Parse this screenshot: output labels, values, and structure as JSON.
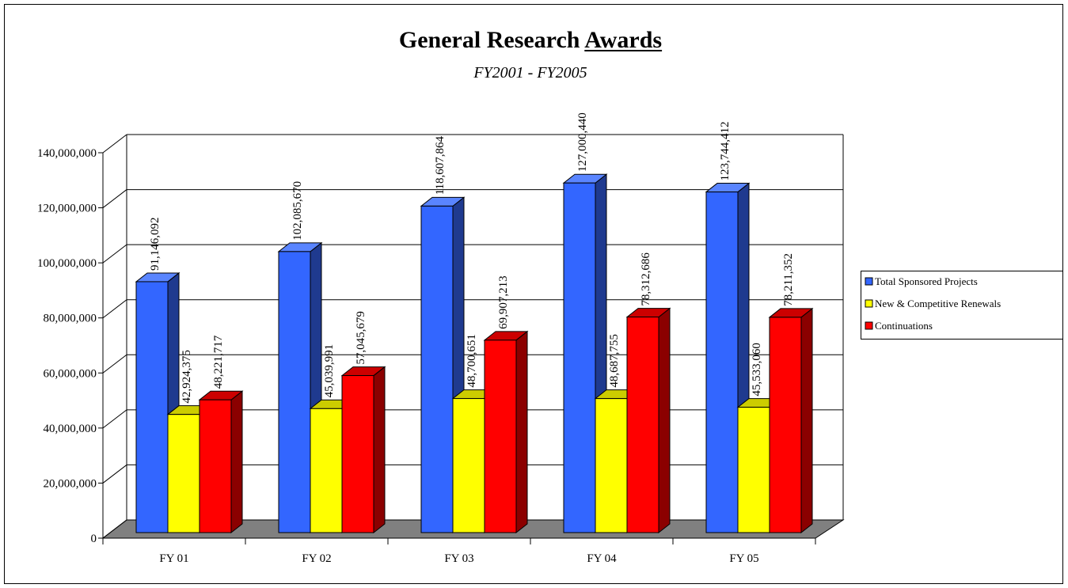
{
  "chart_data": {
    "type": "bar3d",
    "title": "General Research Awards",
    "subtitle": "FY2001 - FY2005",
    "categories": [
      "FY 01",
      "FY 02",
      "FY 03",
      "FY 04",
      "FY 05"
    ],
    "series": [
      {
        "name": "Total Sponsored Projects",
        "color": "#3366ff",
        "values": [
          91146092,
          102085670,
          118607864,
          127000440,
          123744412
        ],
        "value_labels": [
          "91,146,092",
          "102,085,670",
          "118,607,864",
          "127,000,440",
          "123,744,412"
        ]
      },
      {
        "name": "New & Competitive Renewals",
        "color": "#ffff00",
        "values": [
          42924375,
          45039991,
          48700651,
          48687755,
          45533060
        ],
        "value_labels": [
          "42,924,375",
          "45,039,991",
          "48,700,651",
          "48,687,755",
          "45,533,060"
        ]
      },
      {
        "name": "Continuations",
        "color": "#ff0000",
        "values": [
          48221717,
          57045679,
          69907213,
          78312686,
          78211352
        ],
        "value_labels": [
          "48,221,717",
          "57,045,679",
          "69,907,213",
          "78,312,686",
          "78,211,352"
        ]
      }
    ],
    "ylim": [
      0,
      140000000
    ],
    "yticks": [
      0,
      {
        "value": 20000000,
        "label": "20,000,000"
      },
      {
        "value": 40000000,
        "label": "40,000,000"
      },
      {
        "value": 60000000,
        "label": "60,000,000"
      },
      {
        "value": 80000000,
        "label": "80,000,000"
      },
      {
        "value": 100000000,
        "label": "100,000,000"
      },
      {
        "value": 120000000,
        "label": "120,000,000"
      },
      {
        "value": 140000000,
        "label": "140,000,000"
      }
    ],
    "grid": true,
    "legend": "right"
  }
}
